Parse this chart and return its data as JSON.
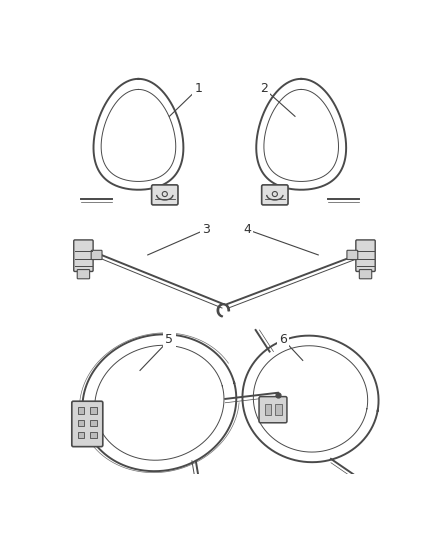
{
  "background_color": "#ffffff",
  "line_color": "#4a4a4a",
  "label_color": "#333333",
  "lw_cable": 1.4,
  "lw_inner": 0.7,
  "fig_w": 4.38,
  "fig_h": 5.33,
  "dpi": 100
}
